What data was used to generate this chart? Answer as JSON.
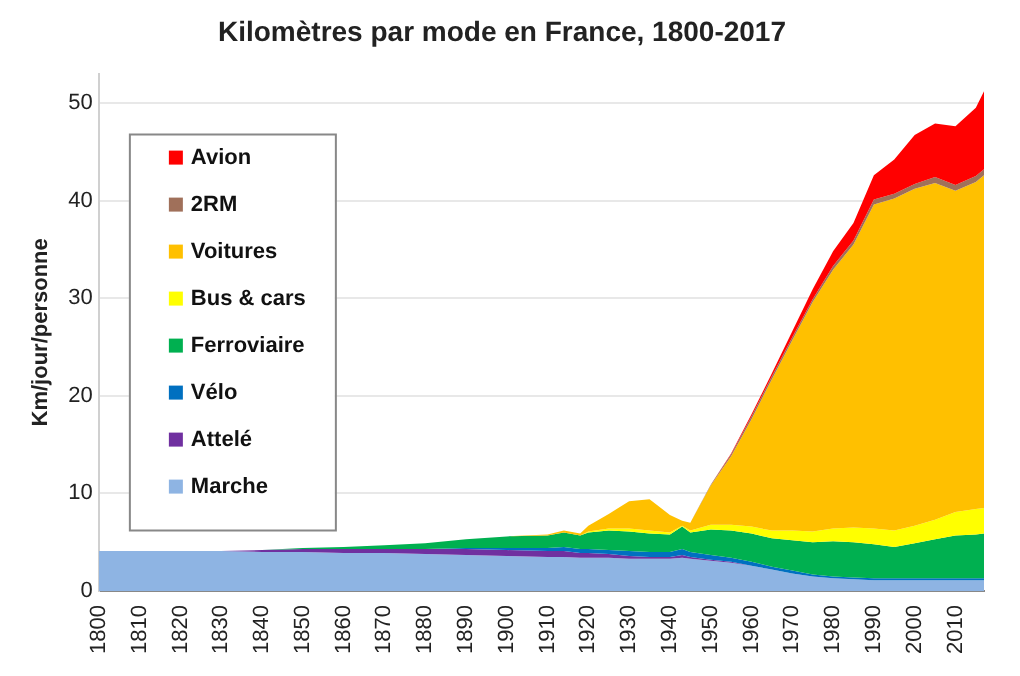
{
  "chart_data": {
    "type": "area",
    "stacked": true,
    "title": "Kilomètres par mode en France, 1800-2017",
    "ylabel": "Km/jour/personne",
    "x": [
      1800,
      1830,
      1840,
      1850,
      1860,
      1870,
      1880,
      1890,
      1900,
      1910,
      1914,
      1918,
      1920,
      1925,
      1930,
      1935,
      1940,
      1943,
      1945,
      1950,
      1955,
      1960,
      1965,
      1970,
      1975,
      1980,
      1985,
      1990,
      1995,
      2000,
      2005,
      2010,
      2015,
      2017
    ],
    "xlim": [
      1800,
      2017
    ],
    "xticks": [
      1800,
      1810,
      1820,
      1830,
      1840,
      1850,
      1860,
      1870,
      1880,
      1890,
      1900,
      1910,
      1920,
      1930,
      1940,
      1950,
      1960,
      1970,
      1980,
      1990,
      2000,
      2010
    ],
    "ylim": [
      0,
      53
    ],
    "yticks": [
      0,
      10,
      20,
      30,
      40,
      50
    ],
    "grid": "y",
    "legend": "top left",
    "series": [
      {
        "name": "Marche",
        "color": "#8eb4e3",
        "values": [
          4.1,
          4.1,
          4.0,
          4.0,
          3.9,
          3.9,
          3.8,
          3.7,
          3.6,
          3.5,
          3.5,
          3.4,
          3.4,
          3.4,
          3.3,
          3.3,
          3.3,
          3.4,
          3.3,
          3.1,
          2.9,
          2.6,
          2.2,
          1.8,
          1.5,
          1.3,
          1.2,
          1.1,
          1.1,
          1.1,
          1.1,
          1.1,
          1.1,
          1.1
        ]
      },
      {
        "name": "Attelé",
        "color": "#7030a0",
        "values": [
          null,
          0,
          0.2,
          0.3,
          0.4,
          0.4,
          0.5,
          0.6,
          0.6,
          0.6,
          0.6,
          0.5,
          0.5,
          0.4,
          0.3,
          0.2,
          0.2,
          0.3,
          0.2,
          0.1,
          0.1,
          0,
          null,
          null,
          null,
          null,
          null,
          null,
          null,
          null,
          null,
          null,
          null,
          null
        ]
      },
      {
        "name": "Vélo",
        "color": "#0070c0",
        "values": [
          null,
          null,
          null,
          null,
          null,
          null,
          0,
          0.1,
          0.2,
          0.3,
          0.4,
          0.4,
          0.4,
          0.4,
          0.5,
          0.5,
          0.5,
          0.6,
          0.5,
          0.5,
          0.4,
          0.4,
          0.3,
          0.3,
          0.2,
          0.2,
          0.2,
          0.2,
          0.2,
          0.2,
          0.2,
          0.2,
          0.2,
          0.2
        ]
      },
      {
        "name": "Ferroviaire",
        "color": "#00b050",
        "values": [
          null,
          null,
          0,
          0.1,
          0.2,
          0.4,
          0.6,
          0.9,
          1.2,
          1.3,
          1.5,
          1.4,
          1.7,
          2.0,
          2.0,
          1.9,
          1.8,
          2.3,
          2.0,
          2.6,
          2.8,
          2.9,
          2.9,
          3.1,
          3.3,
          3.6,
          3.6,
          3.5,
          3.2,
          3.6,
          4.0,
          4.4,
          4.5,
          4.6
        ]
      },
      {
        "name": "Bus & cars",
        "color": "#ffff00",
        "values": [
          null,
          null,
          null,
          null,
          null,
          null,
          null,
          null,
          null,
          null,
          null,
          0,
          0.1,
          0.2,
          0.3,
          0.3,
          0.2,
          0.1,
          0.2,
          0.5,
          0.6,
          0.7,
          0.8,
          1.0,
          1.1,
          1.3,
          1.5,
          1.6,
          1.7,
          1.8,
          2.0,
          2.4,
          2.6,
          2.6
        ]
      },
      {
        "name": "Voitures",
        "color": "#ffc000",
        "values": [
          null,
          null,
          null,
          null,
          null,
          null,
          null,
          null,
          0,
          0.1,
          0.2,
          0.2,
          0.6,
          1.5,
          2.8,
          3.2,
          1.8,
          0.5,
          0.8,
          4.0,
          7.0,
          11.0,
          15.5,
          19.5,
          23.5,
          26.5,
          29.0,
          33.2,
          34.0,
          34.5,
          34.5,
          32.9,
          33.5,
          34.1
        ]
      },
      {
        "name": "2RM",
        "color": "#a0705a",
        "values": [
          null,
          null,
          null,
          null,
          null,
          null,
          null,
          null,
          null,
          null,
          null,
          null,
          null,
          null,
          null,
          null,
          null,
          null,
          0,
          0.1,
          0.2,
          0.3,
          0.3,
          0.3,
          0.3,
          0.4,
          0.4,
          0.5,
          0.5,
          0.5,
          0.6,
          0.6,
          0.6,
          0.6
        ]
      },
      {
        "name": "Avion",
        "color": "#ff0000",
        "values": [
          null,
          null,
          null,
          null,
          null,
          null,
          null,
          null,
          null,
          null,
          null,
          null,
          null,
          null,
          null,
          null,
          null,
          null,
          0,
          0,
          0.1,
          0.2,
          0.3,
          0.6,
          1.0,
          1.5,
          1.8,
          2.5,
          3.5,
          5.0,
          5.5,
          6.0,
          7.0,
          8.0
        ]
      }
    ]
  }
}
